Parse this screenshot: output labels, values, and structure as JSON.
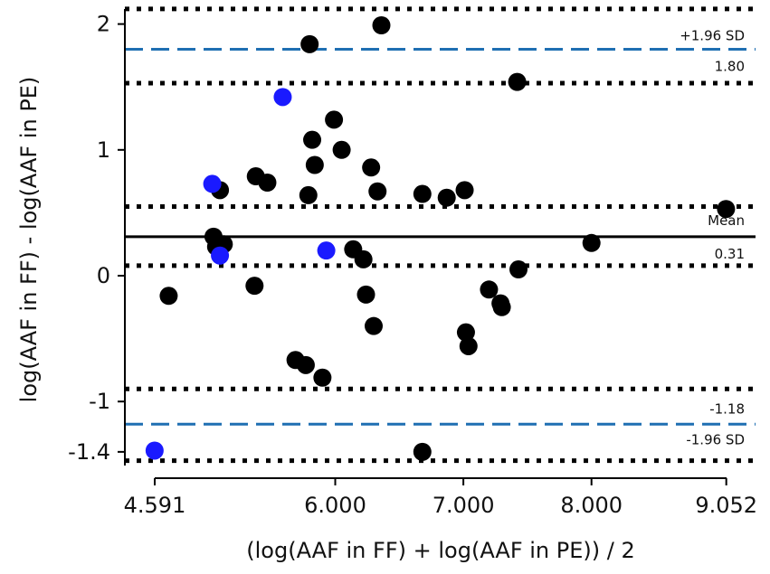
{
  "chart_data": {
    "type": "scatter",
    "xlabel": "(log(AAF in FF) + log(AAF in PE)) / 2",
    "ylabel": "log(AAF in FF) - log(AAF in PE)",
    "xlim": [
      4.591,
      9.052
    ],
    "ylim": [
      -1.5,
      2.2
    ],
    "x_ticks": [
      {
        "value": 4.591,
        "label": "4.591"
      },
      {
        "value": 6.0,
        "label": "6.000"
      },
      {
        "value": 7.0,
        "label": "7.000"
      },
      {
        "value": 8.0,
        "label": "8.000"
      },
      {
        "value": 9.052,
        "label": "9.052"
      }
    ],
    "y_ticks": [
      {
        "value": 2,
        "label": "2"
      },
      {
        "value": 1,
        "label": "1"
      },
      {
        "value": 0,
        "label": "0"
      },
      {
        "value": -1,
        "label": "-1"
      },
      {
        "value": -1.4,
        "label": "-1.4"
      }
    ],
    "mean": {
      "value": 0.31,
      "label": "Mean",
      "value_label": "0.31"
    },
    "upper_loa": {
      "value": 1.8,
      "label": "+1.96 SD",
      "value_label": "1.80"
    },
    "lower_loa": {
      "value": -1.18,
      "label": "-1.96 SD",
      "value_label": "-1.18"
    },
    "ci_lines": [
      2.12,
      1.53,
      0.55,
      0.08,
      -0.9,
      -1.47
    ],
    "colors": {
      "black_points": "#000000",
      "blue_points": "#1a1aff",
      "loa_line": "#1f6fb2",
      "mean_line": "#000000"
    },
    "series": [
      {
        "color": "black",
        "points": [
          [
            5.1,
            0.68
          ],
          [
            5.05,
            0.31
          ],
          [
            5.13,
            0.25
          ],
          [
            5.07,
            0.23
          ],
          [
            5.38,
            0.79
          ],
          [
            5.47,
            0.74
          ],
          [
            5.37,
            -0.08
          ],
          [
            5.8,
            1.84
          ],
          [
            5.82,
            1.08
          ],
          [
            5.84,
            0.88
          ],
          [
            5.79,
            0.64
          ],
          [
            5.99,
            1.24
          ],
          [
            6.05,
            1.0
          ],
          [
            6.36,
            1.99
          ],
          [
            6.28,
            0.86
          ],
          [
            6.33,
            0.67
          ],
          [
            6.14,
            0.21
          ],
          [
            6.22,
            0.13
          ],
          [
            6.24,
            -0.15
          ],
          [
            6.3,
            -0.4
          ],
          [
            5.69,
            -0.67
          ],
          [
            5.77,
            -0.71
          ],
          [
            5.9,
            -0.81
          ],
          [
            6.68,
            0.65
          ],
          [
            6.87,
            0.62
          ],
          [
            7.01,
            0.68
          ],
          [
            7.02,
            -0.45
          ],
          [
            7.04,
            -0.56
          ],
          [
            7.2,
            -0.11
          ],
          [
            7.29,
            -0.22
          ],
          [
            7.3,
            -0.25
          ],
          [
            7.42,
            1.54
          ],
          [
            7.43,
            0.05
          ],
          [
            8.0,
            0.26
          ],
          [
            9.05,
            0.53
          ],
          [
            4.7,
            -0.16
          ],
          [
            6.68,
            -1.4
          ]
        ]
      },
      {
        "color": "blue",
        "points": [
          [
            4.59,
            -1.39
          ],
          [
            5.04,
            0.73
          ],
          [
            5.1,
            0.16
          ],
          [
            5.59,
            1.42
          ],
          [
            5.93,
            0.2
          ]
        ]
      }
    ]
  }
}
